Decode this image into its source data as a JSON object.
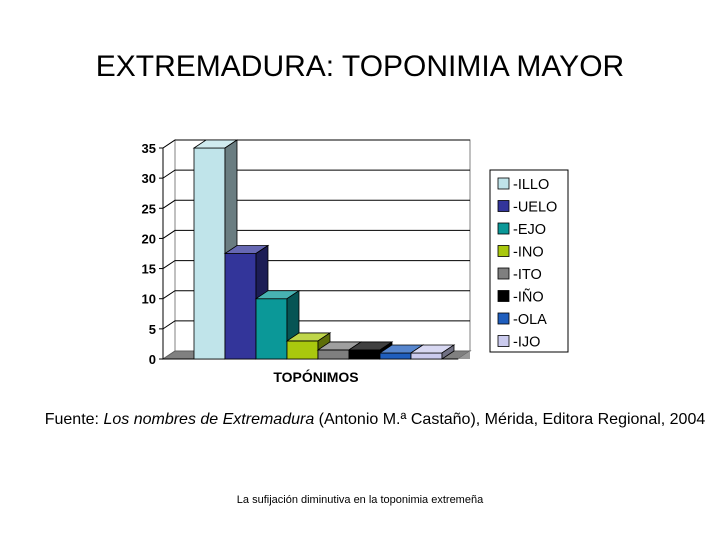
{
  "slide": {
    "title": "EXTREMADURA: TOPONIMIA MAYOR",
    "source_label": "Fuente:",
    "source_book": "Los nombres de Extremadura",
    "source_rest": " (Antonio M.ª Castaño), Mérida, Editora Regional, 2004",
    "footer": "La sufijación diminutiva en la toponimia extremeña"
  },
  "chart_data": {
    "type": "bar",
    "categories": [
      "TOPÓNIMOS"
    ],
    "xlabel": "TOPÓNIMOS",
    "ylabel": "",
    "ylim": [
      0,
      35
    ],
    "yticks": [
      0,
      5,
      10,
      15,
      20,
      25,
      30,
      35
    ],
    "legend_position": "right",
    "grid": true,
    "three_d": true,
    "series": [
      {
        "name": "-ILLO",
        "values": [
          35
        ],
        "color": "#c0e4ea"
      },
      {
        "name": "-UELO",
        "values": [
          17.5
        ],
        "color": "#33359a"
      },
      {
        "name": "-EJO",
        "values": [
          10
        ],
        "color": "#0b9898"
      },
      {
        "name": "-INO",
        "values": [
          3
        ],
        "color": "#a9c80e"
      },
      {
        "name": "-ITO",
        "values": [
          1.5
        ],
        "color": "#7f7f7f"
      },
      {
        "name": "-IÑO",
        "values": [
          1.5
        ],
        "color": "#000000"
      },
      {
        "name": "-OLA",
        "values": [
          1
        ],
        "color": "#1f5ebd"
      },
      {
        "name": "-IJO",
        "values": [
          1
        ],
        "color": "#cbcbee"
      }
    ]
  }
}
